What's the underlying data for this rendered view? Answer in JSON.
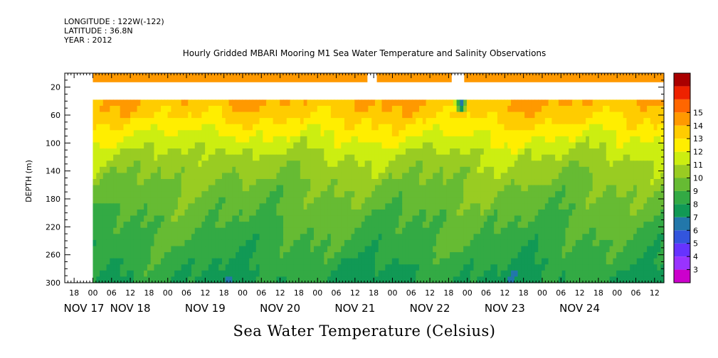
{
  "header": {
    "longitude": "LONGITUDE : 122W(-122)",
    "latitude": "LATITUDE : 36.8N",
    "year": "YEAR : 2012"
  },
  "chart_data": {
    "type": "heatmap",
    "title": "Hourly Gridded MBARI Mooring M1 Sea Water Temperature and Salinity Observations",
    "xlabel": "Sea Water Temperature (Celsius)",
    "ylabel": "DEPTH (m)",
    "x_range_hours": [
      -9,
      183
    ],
    "data_start_hour": 0,
    "y_range": [
      300,
      0
    ],
    "y_ticks": [
      20,
      60,
      100,
      140,
      180,
      220,
      260,
      300
    ],
    "hour_tick_labels": [
      "18",
      "00",
      "06",
      "12",
      "18",
      "00",
      "06",
      "12",
      "18",
      "00",
      "06",
      "12",
      "18",
      "00",
      "06",
      "12",
      "18",
      "00",
      "06",
      "12",
      "18",
      "00",
      "06",
      "12",
      "18",
      "00",
      "06",
      "12",
      "18",
      "00",
      "06",
      "12"
    ],
    "day_labels": [
      {
        "label": "NOV 17",
        "hour": -12
      },
      {
        "label": "NOV 18",
        "hour": 12
      },
      {
        "label": "NOV 19",
        "hour": 36
      },
      {
        "label": "NOV 20",
        "hour": 60
      },
      {
        "label": "NOV 21",
        "hour": 84
      },
      {
        "label": "NOV 22",
        "hour": 108
      },
      {
        "label": "NOV 23",
        "hour": 132
      },
      {
        "label": "NOV 24",
        "hour": 156
      }
    ],
    "colorbar": {
      "levels": [
        3,
        4,
        5,
        6,
        7,
        8,
        9,
        10,
        11,
        12,
        13,
        14,
        15
      ],
      "colors": [
        "#cc00cc",
        "#9933ff",
        "#6633ff",
        "#3355dd",
        "#2277aa",
        "#119955",
        "#33aa44",
        "#66bb33",
        "#99cc22",
        "#ccee11",
        "#ffee00",
        "#ffcc00",
        "#ff9900",
        "#ff6600",
        "#ee2200",
        "#aa0000"
      ]
    },
    "surface_band": {
      "depth_range": [
        0,
        13
      ],
      "value": 14.7,
      "gaps_hours": [
        [
          88,
          91
        ],
        [
          115,
          119
        ]
      ]
    },
    "missing_shallow_depth": 38,
    "anomaly": {
      "hour": 118,
      "depth_range": [
        38,
        56
      ],
      "value": 6
    },
    "depth_profile": [
      {
        "depth": 38,
        "value": 14.1
      },
      {
        "depth": 60,
        "value": 13.4
      },
      {
        "depth": 80,
        "value": 12.5
      },
      {
        "depth": 100,
        "value": 11.7
      },
      {
        "depth": 120,
        "value": 10.9
      },
      {
        "depth": 140,
        "value": 10.4
      },
      {
        "depth": 160,
        "value": 10.0
      },
      {
        "depth": 180,
        "value": 9.6
      },
      {
        "depth": 200,
        "value": 9.3
      },
      {
        "depth": 220,
        "value": 9.0
      },
      {
        "depth": 240,
        "value": 8.7
      },
      {
        "depth": 260,
        "value": 8.4
      },
      {
        "depth": 280,
        "value": 8.1
      },
      {
        "depth": 300,
        "value": 7.8
      }
    ]
  }
}
